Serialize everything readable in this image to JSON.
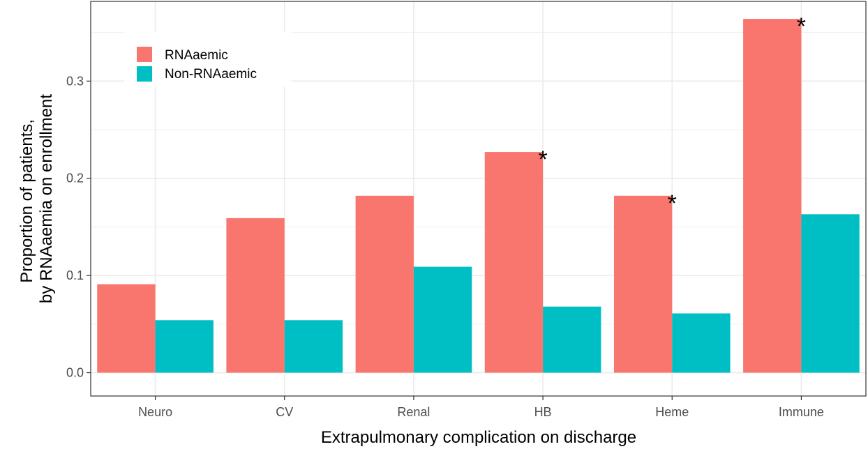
{
  "chart_data": {
    "type": "bar",
    "xlabel": "Extrapulmonary complication on discharge",
    "ylabel_lines": [
      "Proportion of patients,",
      "by RNAaemia on enrollment"
    ],
    "categories": [
      "Neuro",
      "CV",
      "Renal",
      "HB",
      "Heme",
      "Immune"
    ],
    "series": [
      {
        "name": "RNAaemic",
        "color": "#F8766D",
        "values": [
          0.091,
          0.159,
          0.182,
          0.227,
          0.182,
          0.364
        ]
      },
      {
        "name": "Non-RNAaemic",
        "color": "#00BFC4",
        "values": [
          0.054,
          0.054,
          0.109,
          0.068,
          0.061,
          0.163
        ]
      }
    ],
    "significance_marker": "*",
    "significant": [
      false,
      false,
      false,
      true,
      true,
      true
    ],
    "ylim": [
      -0.024,
      0.382
    ],
    "yticks": [
      0.0,
      0.1,
      0.2,
      0.3
    ],
    "ytick_labels": [
      "0.0",
      "0.1",
      "0.2",
      "0.3"
    ],
    "grid": true,
    "legend_position": "top-left"
  }
}
